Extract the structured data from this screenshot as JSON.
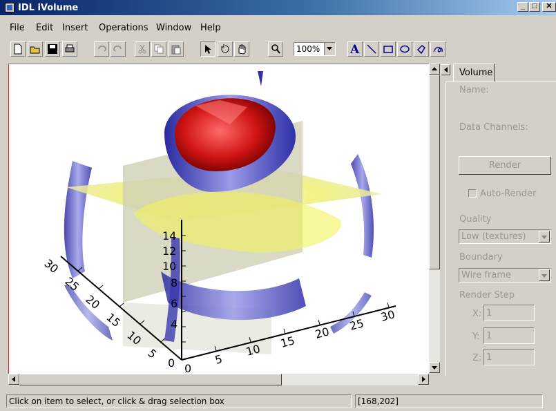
{
  "window": {
    "title": "IDL iVolume"
  },
  "menu": [
    "File",
    "Edit",
    "Insert",
    "Operations",
    "Window",
    "Help"
  ],
  "toolbar": {
    "zoom": "100%"
  },
  "axes": {
    "z_ticks": [
      "14",
      "12",
      "10",
      "8",
      "6",
      "4"
    ],
    "x_ticks": [
      "0",
      "5",
      "10",
      "15",
      "20",
      "25",
      "30"
    ],
    "y_ticks": [
      "30",
      "25",
      "20",
      "15",
      "10",
      "5"
    ],
    "origin_label": "0"
  },
  "panel": {
    "tab": "Volume",
    "name_label": "Name:",
    "channels_label": "Data Channels:",
    "render_button": "Render",
    "auto_render": "Auto-Render",
    "quality_label": "Quality",
    "quality_value": "Low (textures)",
    "boundary_label": "Boundary",
    "boundary_value": "Wire frame",
    "step_label": "Render Step",
    "x_label": "X:",
    "x_value": "1",
    "y_label": "Y:",
    "y_value": "1",
    "z_label": "Z:",
    "z_value": "1"
  },
  "status": {
    "message": "Click on item to select, or click & drag selection box",
    "coords": "[168,202]"
  }
}
